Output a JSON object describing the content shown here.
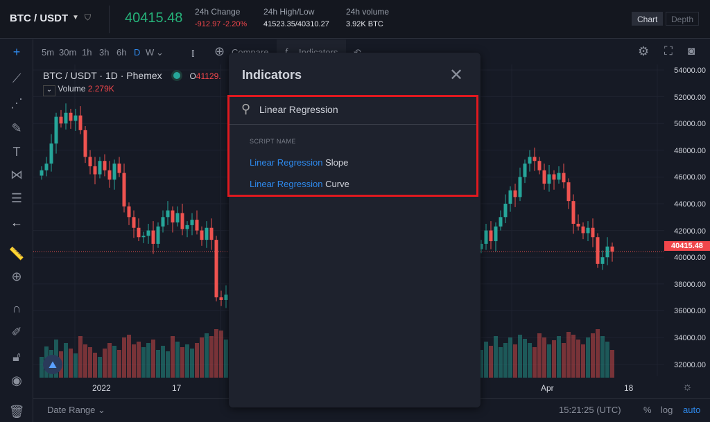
{
  "header": {
    "pair": "BTC / USDT",
    "price": "40415.48",
    "stats": [
      {
        "label": "24h Change",
        "value": "-912.97 -2.20%",
        "negative": true
      },
      {
        "label": "24h High/Low",
        "value": "41523.35/40310.27"
      },
      {
        "label": "24h volume",
        "value": "3.92K BTC"
      }
    ],
    "view_toggle": [
      "Chart",
      "Depth"
    ],
    "active_view": "Chart"
  },
  "toolbar": {
    "intervals": [
      "5m",
      "30m",
      "1h",
      "3h",
      "6h",
      "D",
      "W"
    ],
    "active_interval": "D",
    "compare": "Compare",
    "indicators": "Indicators"
  },
  "chart": {
    "symbol": "BTC / USDT · 1D · Phemex",
    "open_label": "O",
    "open_value": "41129.",
    "volume_label": "Volume",
    "volume_value": "2.279K",
    "price_axis": [
      "54000.00",
      "52000.00",
      "50000.00",
      "48000.00",
      "46000.00",
      "44000.00",
      "42000.00",
      "40000.00",
      "38000.00",
      "36000.00",
      "34000.00",
      "32000.00"
    ],
    "last_price": "40415.48",
    "time_axis": [
      "2022",
      "17",
      "Apr",
      "18"
    ],
    "colors": {
      "up": "#26a69a",
      "down": "#ef5350"
    },
    "closes_left": [
      46500,
      47000,
      48500,
      50500,
      50000,
      50800,
      50200,
      50600,
      49500,
      47500,
      46800,
      46200,
      47200,
      46500,
      45800,
      47000,
      46300,
      43800,
      43000,
      42200,
      41500,
      41600,
      42000,
      41000,
      42300,
      43000,
      43500,
      42600,
      43300,
      42100,
      42400,
      42800,
      42000,
      41300,
      42200,
      41300,
      37000,
      36800,
      37200,
      36900
    ],
    "closes_right": [
      41000,
      42000,
      41200,
      42300,
      43000,
      44000,
      45000,
      44500,
      46000,
      47000,
      47500,
      47200,
      46500,
      45500,
      46200,
      45800,
      46300,
      45600,
      44200,
      42500,
      42300,
      41800,
      42200,
      41500,
      39500,
      40000,
      40800,
      40415
    ],
    "volumes_left": [
      30,
      45,
      40,
      55,
      38,
      50,
      42,
      35,
      60,
      48,
      44,
      36,
      30,
      42,
      50,
      46,
      40,
      58,
      62,
      48,
      52,
      44,
      50,
      55,
      40,
      46,
      38,
      60,
      52,
      44,
      48,
      42,
      50,
      58,
      64,
      60,
      70,
      68,
      55,
      50
    ],
    "volumes_right": [
      40,
      52,
      46,
      60,
      44,
      50,
      58,
      48,
      62,
      56,
      50,
      44,
      64,
      58,
      48,
      54,
      60,
      50,
      66,
      62,
      55,
      48,
      58,
      64,
      70,
      60,
      52,
      40
    ]
  },
  "bottom": {
    "date_range": "Date Range",
    "time": "15:21:25 (UTC)",
    "percent": "%",
    "log": "log",
    "auto": "auto"
  },
  "modal": {
    "title": "Indicators",
    "search_value": "Linear Regression",
    "section": "SCRIPT NAME",
    "results": [
      {
        "match": "Linear Regression",
        "rest": " Slope"
      },
      {
        "match": "Linear Regression",
        "rest": " Curve"
      }
    ]
  }
}
